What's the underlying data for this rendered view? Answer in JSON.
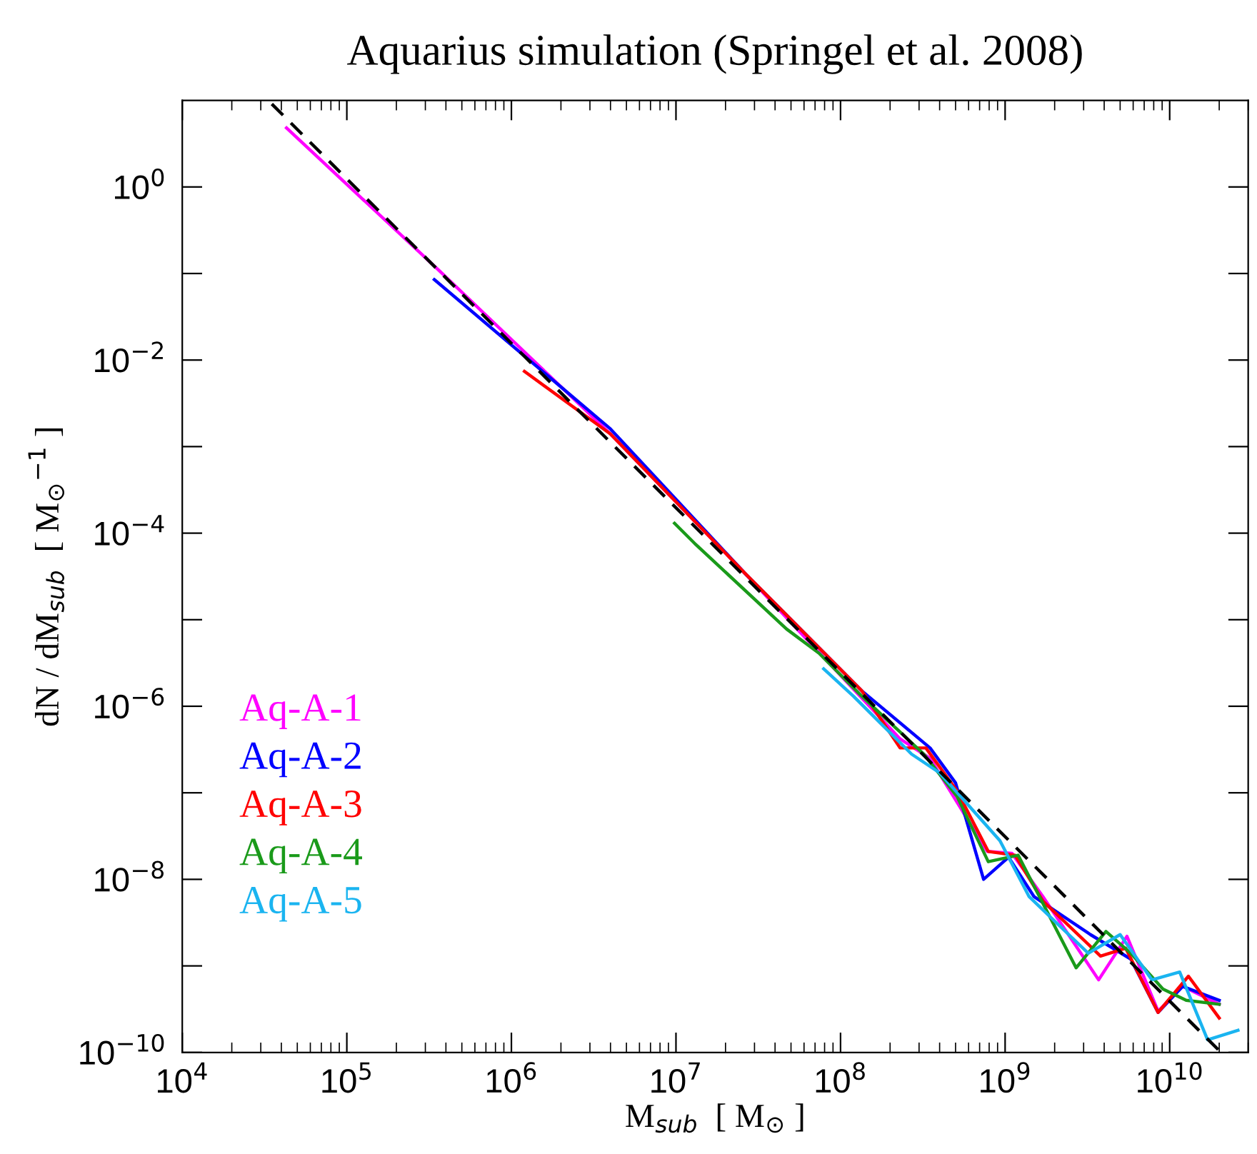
{
  "chart_data": {
    "type": "line",
    "title": "Aquarius simulation (Springel et al. 2008)",
    "xlabel": "M$_{sub}$  [ M$_{⊙}$ ]",
    "ylabel": "dN / dM$_{sub}$  [ M$_{⊙}$$^{−1}$ ]",
    "log": "xy",
    "xlim": [
      10000.0,
      30000000000.0
    ],
    "ylim": [
      1e-10,
      10
    ],
    "xticks": [
      {
        "value": 10000.0,
        "label": "10$^{4}$"
      },
      {
        "value": 100000.0,
        "label": "10$^{5}$"
      },
      {
        "value": 1000000.0,
        "label": "10$^{6}$"
      },
      {
        "value": 10000000.0,
        "label": "10$^{7}$"
      },
      {
        "value": 100000000.0,
        "label": "10$^{8}$"
      },
      {
        "value": 1000000000.0,
        "label": "10$^{9}$"
      },
      {
        "value": 10000000000.0,
        "label": "10$^{10}$"
      }
    ],
    "yticks": [
      {
        "value": 1e-10,
        "label": "10$^{−10}$"
      },
      {
        "value": 1e-09,
        "label": null
      },
      {
        "value": 1e-08,
        "label": "10$^{−8}$"
      },
      {
        "value": 1e-07,
        "label": null
      },
      {
        "value": 1e-06,
        "label": "10$^{−6}$"
      },
      {
        "value": 1e-05,
        "label": null
      },
      {
        "value": 0.0001,
        "label": "10$^{−4}$"
      },
      {
        "value": 0.001,
        "label": null
      },
      {
        "value": 0.01,
        "label": "10$^{−2}$"
      },
      {
        "value": 0.1,
        "label": null
      },
      {
        "value": 1,
        "label": "10$^{0}$"
      }
    ],
    "grid": false,
    "legend": "bottom left",
    "marker": "none",
    "series": [
      {
        "name": "Aq-A-1",
        "color": "#ff00ff",
        "x": [
          43000.0,
          360000.0,
          4000000.0,
          26000000.0,
          230000000.0,
          350000000.0,
          780000000.0,
          1100000000.0,
          1700000000.0,
          3700000000.0,
          5500000000.0,
          8500000000.0,
          12000000000.0,
          20000000000.0
        ],
        "values": [
          4.8,
          0.11,
          0.0014,
          3.5e-05,
          4.2e-07,
          2.5e-07,
          2.1e-08,
          2e-08,
          6.3e-09,
          6.9e-10,
          2.2e-09,
          3e-10,
          5.8e-10,
          3.6e-10
        ]
      },
      {
        "name": "Aq-A-2",
        "color": "#0000ff",
        "x": [
          340000.0,
          4000000.0,
          26000000.0,
          135000000.0,
          350000000.0,
          500000000.0,
          740000000.0,
          1050000000.0,
          1500000000.0,
          3300000000.0,
          5800000000.0,
          8500000000.0,
          12000000000.0,
          20000000000.0
        ],
        "values": [
          0.085,
          0.0016,
          3.5e-05,
          1.5e-06,
          3.3e-07,
          1.3e-07,
          1e-08,
          1.8e-08,
          6.3e-09,
          2.3e-09,
          1.2e-09,
          2.9e-10,
          5.8e-10,
          4e-10
        ]
      },
      {
        "name": "Aq-A-3",
        "color": "#ff0000",
        "x": [
          1200000.0,
          4000000.0,
          26000000.0,
          135000000.0,
          230000000.0,
          330000000.0,
          510000000.0,
          790000000.0,
          1150000000.0,
          1700000000.0,
          3800000000.0,
          5400000000.0,
          8500000000.0,
          13000000000.0,
          20000000000.0
        ],
        "values": [
          0.0074,
          0.0014,
          3.5e-05,
          1.5e-06,
          3.3e-07,
          3.3e-07,
          1.05e-07,
          2.1e-08,
          1.9e-08,
          5.6e-09,
          1.3e-09,
          1.6e-09,
          2.9e-10,
          7.6e-10,
          2.5e-10
        ]
      },
      {
        "name": "Aq-A-4",
        "color": "#1a9a1a",
        "x": [
          9800000.0,
          13000000.0,
          47000000.0,
          74000000.0,
          135000000.0,
          320000000.0,
          510000000.0,
          790000000.0,
          1200000000.0,
          2700000000.0,
          4100000000.0,
          5800000000.0,
          9100000000.0,
          12600000000.0,
          20000000000.0
        ],
        "values": [
          0.00013,
          7.6e-05,
          7.8e-06,
          4.1e-06,
          1.3e-06,
          2.8e-07,
          9.1e-08,
          1.6e-08,
          1.9e-08,
          9.5e-10,
          2.5e-09,
          1.4e-09,
          5.4e-10,
          4e-10,
          3.6e-10
        ]
      },
      {
        "name": "Aq-A-5",
        "color": "#1ab4f0",
        "x": [
          79000000.0,
          120000000.0,
          270000000.0,
          400000000.0,
          930000000.0,
          1400000000.0,
          3200000000.0,
          5000000000.0,
          7800000000.0,
          11500000000.0,
          17000000000.0,
          26000000000.0
        ],
        "values": [
          2.7e-06,
          1.3e-06,
          2.8e-07,
          1.7e-07,
          2.8e-08,
          6.3e-09,
          1.4e-09,
          2.3e-09,
          6.9e-10,
          8.5e-10,
          1.4e-10,
          1.8e-10
        ]
      },
      {
        "color": "#000000",
        "line_style": "dashed",
        "x": [
          35000.0,
          20000000000.0
        ],
        "values": [
          9.1,
          1.05e-10
        ]
      }
    ]
  }
}
